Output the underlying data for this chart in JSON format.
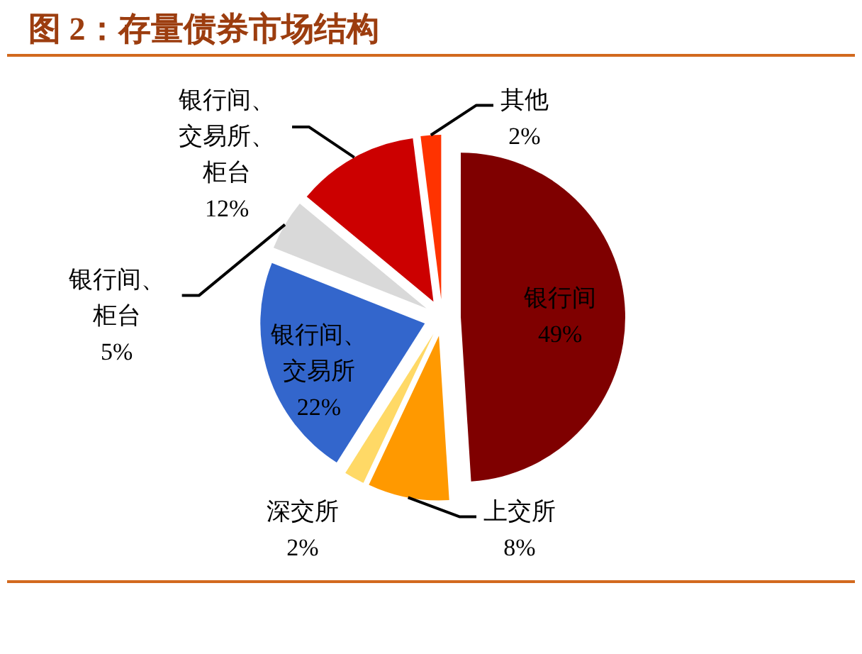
{
  "chart_data": {
    "type": "pie",
    "title": "图 2：存量债券市场结构",
    "categories": [
      "银行间",
      "上交所",
      "深交所",
      "银行间、交易所",
      "银行间、柜台",
      "银行间、交易所、柜台",
      "其他"
    ],
    "values": [
      49,
      8,
      2,
      22,
      5,
      12,
      2
    ],
    "colors": [
      "#7f0000",
      "#ff9900",
      "#ffd966",
      "#3366cc",
      "#d9d9d9",
      "#cc0000",
      "#ff3300"
    ],
    "value_labels": [
      "49%",
      "8%",
      "2%",
      "22%",
      "5%",
      "12%",
      "2%"
    ]
  }
}
